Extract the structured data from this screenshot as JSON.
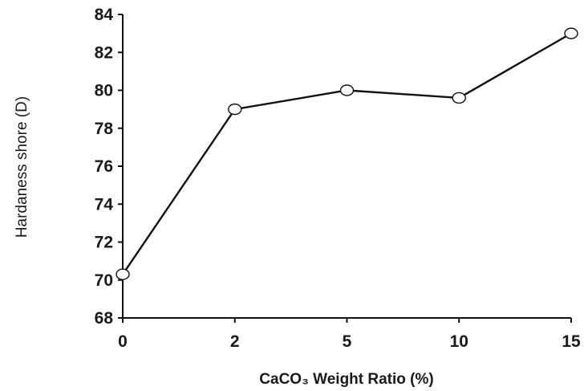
{
  "chart_data": {
    "type": "line",
    "title": "",
    "xlabel": "CaCO₃ Weight Ratio (%)",
    "ylabel": "Hardaness shore (D)",
    "x_tick_labels": [
      "0",
      "2",
      "5",
      "10",
      "15"
    ],
    "y_ticks": [
      68,
      70,
      72,
      74,
      76,
      78,
      80,
      82,
      84
    ],
    "y_tick_labels": [
      "68",
      "70",
      "72",
      "74",
      "76",
      "78",
      "80",
      "82",
      "84"
    ],
    "ylim": [
      68,
      84
    ],
    "grid": false,
    "series": [
      {
        "x": [
          "0",
          "2",
          "5",
          "10",
          "15"
        ],
        "values": [
          70.3,
          79.0,
          80.0,
          79.6,
          83.0
        ],
        "marker": "open-circle",
        "color": "#111111"
      }
    ]
  }
}
